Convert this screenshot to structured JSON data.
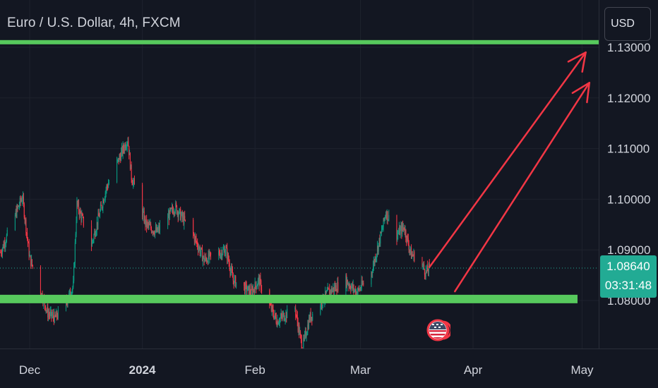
{
  "header": {
    "title": "Euro / U.S. Dollar, 4h, FXCM",
    "currency_button": "USD"
  },
  "price_label": {
    "value": "1.08640",
    "countdown": "03:31:48"
  },
  "colors": {
    "background": "#131722",
    "up_candle": "#089981",
    "down_candle": "#f23645",
    "level_line": "#57c95d",
    "arrow": "#f23645",
    "price_line": "#22ab94"
  },
  "icons": {
    "event_badge": "us-flag-icon"
  },
  "chart_data": {
    "type": "candlestick",
    "title": "Euro / U.S. Dollar, 4h, FXCM",
    "y_ticks": [
      "1.13000",
      "1.12000",
      "1.11000",
      "1.10000",
      "1.09000",
      "1.08000"
    ],
    "x_ticks": [
      "Dec",
      "2024",
      "Feb",
      "Mar",
      "Apr",
      "May"
    ],
    "ylim": [
      1.0705,
      1.1335
    ],
    "last_price": 1.0864,
    "close_path": [
      {
        "date": "2023-11-23",
        "price": 1.0895
      },
      {
        "date": "2023-11-29",
        "price": 1.1005
      },
      {
        "date": "2023-12-01",
        "price": 1.0885
      },
      {
        "date": "2023-12-06",
        "price": 1.0775
      },
      {
        "date": "2023-12-08",
        "price": 1.0765
      },
      {
        "date": "2023-12-11",
        "price": 1.0795
      },
      {
        "date": "2023-12-13",
        "price": 1.083
      },
      {
        "date": "2023-12-14",
        "price": 1.099
      },
      {
        "date": "2023-12-18",
        "price": 1.091
      },
      {
        "date": "2023-12-22",
        "price": 1.102
      },
      {
        "date": "2023-12-28",
        "price": 1.112
      },
      {
        "date": "2023-12-29",
        "price": 1.1045
      },
      {
        "date": "2024-01-02",
        "price": 1.095
      },
      {
        "date": "2024-01-05",
        "price": 1.0935
      },
      {
        "date": "2024-01-10",
        "price": 1.0985
      },
      {
        "date": "2024-01-15",
        "price": 1.093
      },
      {
        "date": "2024-01-18",
        "price": 1.088
      },
      {
        "date": "2024-01-24",
        "price": 1.09
      },
      {
        "date": "2024-01-26",
        "price": 1.084
      },
      {
        "date": "2024-01-31",
        "price": 1.0815
      },
      {
        "date": "2024-02-02",
        "price": 1.084
      },
      {
        "date": "2024-02-05",
        "price": 1.079
      },
      {
        "date": "2024-02-07",
        "price": 1.076
      },
      {
        "date": "2024-02-12",
        "price": 1.0785
      },
      {
        "date": "2024-02-14",
        "price": 1.0705
      },
      {
        "date": "2024-02-16",
        "price": 1.0765
      },
      {
        "date": "2024-02-21",
        "price": 1.0815
      },
      {
        "date": "2024-02-26",
        "price": 1.084
      },
      {
        "date": "2024-02-29",
        "price": 1.0815
      },
      {
        "date": "2024-03-04",
        "price": 1.0855
      },
      {
        "date": "2024-03-07",
        "price": 1.094
      },
      {
        "date": "2024-03-08",
        "price": 1.0975
      },
      {
        "date": "2024-03-11",
        "price": 1.093
      },
      {
        "date": "2024-03-13",
        "price": 1.0945
      },
      {
        "date": "2024-03-15",
        "price": 1.089
      },
      {
        "date": "2024-03-17",
        "price": 1.0885
      },
      {
        "date": "2024-03-19",
        "price": 1.0855
      },
      {
        "date": "2024-03-20",
        "price": 1.0864
      }
    ],
    "support_level": 1.0803,
    "resistance_level": 1.131,
    "projection_arrows": [
      {
        "from": {
          "date": "2024-03-20",
          "price": 1.0866
        },
        "to": {
          "date": "2024-05-02",
          "price": 1.129
        }
      },
      {
        "from": {
          "date": "2024-03-27",
          "price": 1.0818
        },
        "to": {
          "date": "2024-05-03",
          "price": 1.123
        }
      }
    ]
  }
}
